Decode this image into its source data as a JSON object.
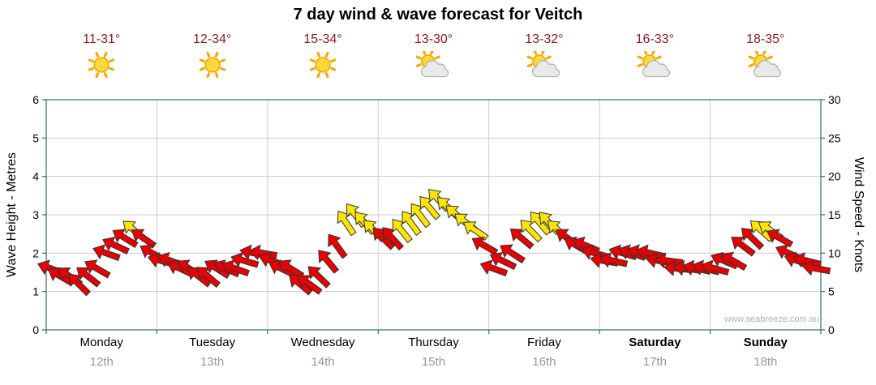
{
  "title": "7 day wind & wave forecast for Veitch",
  "watermark": "www.seabreeze.com.au",
  "days": [
    {
      "name": "Monday",
      "date": "12th",
      "temp": "11-31°",
      "icon": "sunny",
      "weekend": false
    },
    {
      "name": "Tuesday",
      "date": "13th",
      "temp": "12-34°",
      "icon": "sunny",
      "weekend": false
    },
    {
      "name": "Wednesday",
      "date": "14th",
      "temp": "15-34°",
      "icon": "sunny",
      "weekend": false
    },
    {
      "name": "Thursday",
      "date": "15th",
      "temp": "13-30°",
      "icon": "partly-cloudy",
      "weekend": false
    },
    {
      "name": "Friday",
      "date": "16th",
      "temp": "13-32°",
      "icon": "partly-cloudy",
      "weekend": false
    },
    {
      "name": "Saturday",
      "date": "17th",
      "temp": "16-33°",
      "icon": "partly-cloudy",
      "weekend": true
    },
    {
      "name": "Sunday",
      "date": "18th",
      "temp": "18-35°",
      "icon": "partly-cloudy",
      "weekend": true
    }
  ],
  "left_axis": {
    "label": "Wave Height - Metres",
    "min": 0,
    "max": 6,
    "ticks": [
      0,
      1,
      2,
      3,
      4,
      5,
      6
    ]
  },
  "right_axis": {
    "label": "Wind Speed - Knots",
    "min": 0,
    "max": 30,
    "ticks": [
      0,
      5,
      10,
      15,
      20,
      25,
      30
    ]
  },
  "colors": {
    "arrow_red": "#e60000",
    "arrow_yellow": "#ffe400",
    "arrow_outline": "#333333",
    "temp_text": "#8b1a1a",
    "grid": "#cccccc",
    "axis": "#2f6f6f",
    "day_name": "#000000",
    "day_date": "#999999",
    "watermark": "#b0b0b0",
    "title": "#000000"
  },
  "chart_data": {
    "type": "scatter",
    "subtype": "wind-arrows",
    "title": "7 day wind & wave forecast for Veitch",
    "categories": [
      "Monday 12th",
      "Tuesday 13th",
      "Wednesday 14th",
      "Thursday 15th",
      "Friday 16th",
      "Saturday 17th",
      "Sunday 18th"
    ],
    "y_axis": {
      "label": "Wind Speed - Knots",
      "range": [
        0,
        30
      ]
    },
    "secondary_y_axis": {
      "label": "Wave Height - Metres",
      "range": [
        0,
        6
      ]
    },
    "yellow_threshold_knots": 13,
    "point_format": [
      "day_index",
      "hour",
      "wind_knots",
      "arrow_rotation_deg"
    ],
    "points": [
      [
        0,
        0,
        8,
        200
      ],
      [
        0,
        2,
        7,
        210
      ],
      [
        0,
        4,
        7,
        215
      ],
      [
        0,
        6,
        6,
        225
      ],
      [
        0,
        8,
        7,
        218
      ],
      [
        0,
        10,
        8,
        210
      ],
      [
        0,
        12,
        10,
        200
      ],
      [
        0,
        14,
        11,
        205
      ],
      [
        0,
        16,
        12,
        212
      ],
      [
        0,
        18,
        13,
        220
      ],
      [
        0,
        20,
        12,
        215
      ],
      [
        0,
        22,
        10,
        210
      ],
      [
        1,
        0,
        9,
        195
      ],
      [
        1,
        2,
        9,
        200
      ],
      [
        1,
        4,
        8,
        205
      ],
      [
        1,
        6,
        8,
        212
      ],
      [
        1,
        8,
        7,
        218
      ],
      [
        1,
        10,
        7,
        220
      ],
      [
        1,
        12,
        8,
        212
      ],
      [
        1,
        14,
        8,
        205
      ],
      [
        1,
        16,
        8,
        200
      ],
      [
        1,
        18,
        9,
        196
      ],
      [
        1,
        20,
        10,
        192
      ],
      [
        1,
        22,
        10,
        190
      ],
      [
        2,
        0,
        9,
        200
      ],
      [
        2,
        2,
        8,
        206
      ],
      [
        2,
        4,
        8,
        212
      ],
      [
        2,
        6,
        6,
        220
      ],
      [
        2,
        8,
        6,
        216
      ],
      [
        2,
        10,
        7,
        224
      ],
      [
        2,
        12,
        9,
        230
      ],
      [
        2,
        14,
        11,
        234
      ],
      [
        2,
        16,
        14,
        236
      ],
      [
        2,
        18,
        15,
        232
      ],
      [
        2,
        20,
        14,
        228
      ],
      [
        2,
        22,
        13,
        225
      ],
      [
        3,
        0,
        12,
        225
      ],
      [
        3,
        2,
        12,
        228
      ],
      [
        3,
        4,
        13,
        231
      ],
      [
        3,
        6,
        14,
        234
      ],
      [
        3,
        8,
        15,
        233
      ],
      [
        3,
        10,
        16,
        230
      ],
      [
        3,
        12,
        17,
        227
      ],
      [
        3,
        14,
        16,
        224
      ],
      [
        3,
        16,
        15,
        221
      ],
      [
        3,
        18,
        14,
        218
      ],
      [
        3,
        20,
        13,
        214
      ],
      [
        3,
        22,
        11,
        210
      ],
      [
        4,
        0,
        8,
        200
      ],
      [
        4,
        2,
        9,
        206
      ],
      [
        4,
        4,
        10,
        213
      ],
      [
        4,
        6,
        12,
        220
      ],
      [
        4,
        8,
        13,
        226
      ],
      [
        4,
        10,
        14,
        230
      ],
      [
        4,
        12,
        14,
        228
      ],
      [
        4,
        14,
        13,
        222
      ],
      [
        4,
        16,
        12,
        216
      ],
      [
        4,
        18,
        11,
        210
      ],
      [
        4,
        20,
        11,
        203
      ],
      [
        4,
        22,
        10,
        196
      ],
      [
        5,
        0,
        9,
        190
      ],
      [
        5,
        2,
        9,
        193
      ],
      [
        5,
        4,
        10,
        196
      ],
      [
        5,
        6,
        10,
        199
      ],
      [
        5,
        8,
        10,
        197
      ],
      [
        5,
        10,
        10,
        193
      ],
      [
        5,
        12,
        9,
        190
      ],
      [
        5,
        14,
        9,
        187
      ],
      [
        5,
        16,
        8,
        186
      ],
      [
        5,
        18,
        8,
        189
      ],
      [
        5,
        20,
        8,
        192
      ],
      [
        5,
        22,
        8,
        195
      ],
      [
        6,
        0,
        8,
        196
      ],
      [
        6,
        2,
        9,
        203
      ],
      [
        6,
        4,
        9,
        210
      ],
      [
        6,
        6,
        11,
        217
      ],
      [
        6,
        8,
        12,
        224
      ],
      [
        6,
        10,
        13,
        222
      ],
      [
        6,
        12,
        13,
        215
      ],
      [
        6,
        14,
        12,
        209
      ],
      [
        6,
        16,
        10,
        204
      ],
      [
        6,
        18,
        9,
        199
      ],
      [
        6,
        20,
        9,
        194
      ],
      [
        6,
        22,
        8,
        190
      ]
    ]
  }
}
